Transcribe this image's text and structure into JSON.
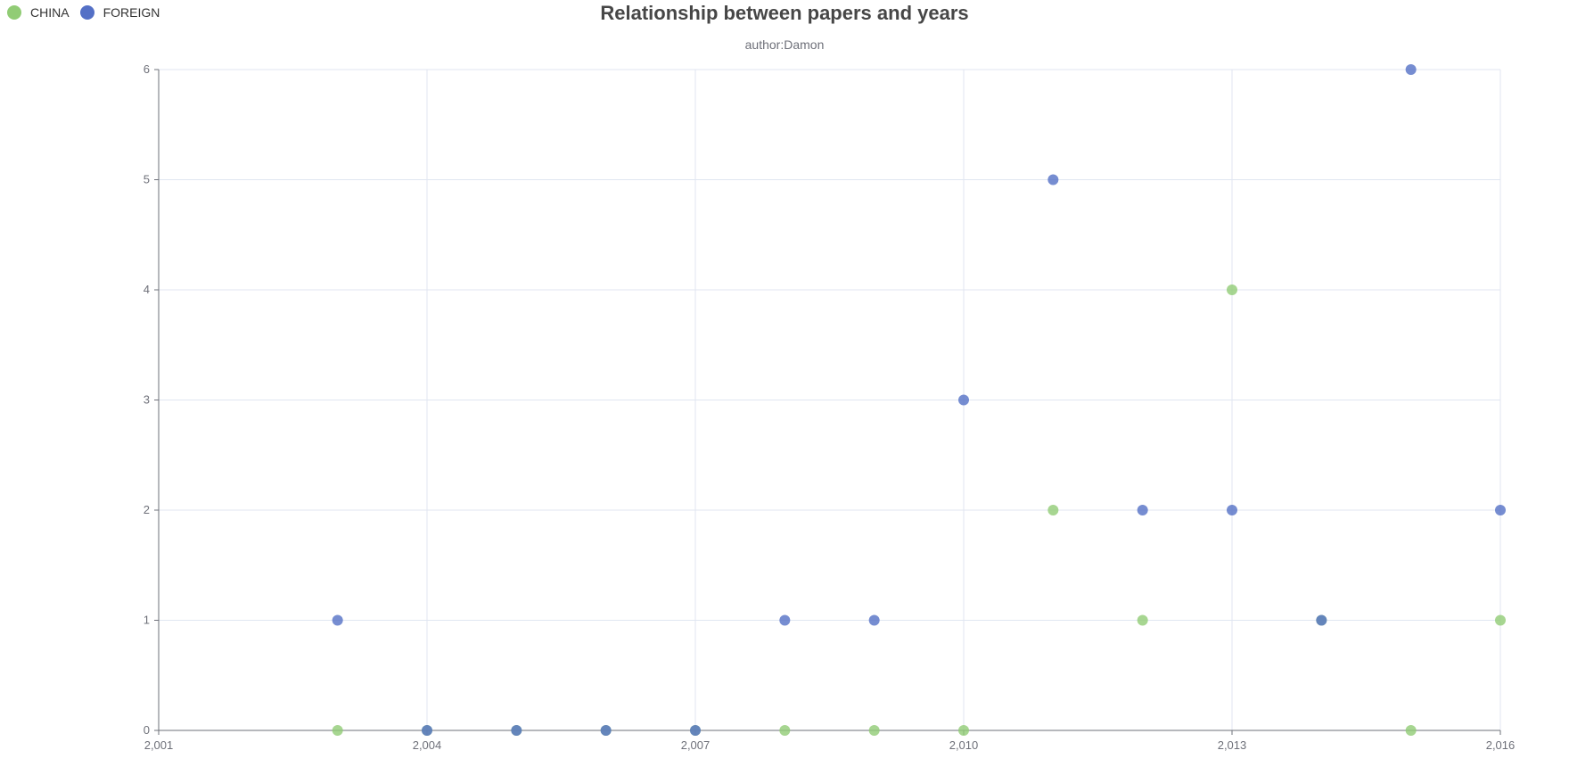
{
  "chart_data": {
    "type": "scatter",
    "title": "Relationship between papers and years",
    "subtitle": "author:Damon",
    "xlabel": "",
    "ylabel": "",
    "xlim": [
      2001,
      2016
    ],
    "ylim": [
      0,
      6
    ],
    "x_ticks": [
      "2,001",
      "2,004",
      "2,007",
      "2,010",
      "2,013",
      "2,016"
    ],
    "x_tick_values": [
      2001,
      2004,
      2007,
      2010,
      2013,
      2016
    ],
    "y_ticks": [
      "0",
      "1",
      "2",
      "3",
      "4",
      "5",
      "6"
    ],
    "y_tick_values": [
      0,
      1,
      2,
      3,
      4,
      5,
      6
    ],
    "grid": true,
    "legend_position": "top-left",
    "series": [
      {
        "name": "CHINA",
        "color": "#91cc75",
        "points": [
          [
            2003,
            0
          ],
          [
            2004,
            0
          ],
          [
            2005,
            0
          ],
          [
            2006,
            0
          ],
          [
            2007,
            0
          ],
          [
            2008,
            0
          ],
          [
            2009,
            0
          ],
          [
            2010,
            0
          ],
          [
            2011,
            2
          ],
          [
            2012,
            1
          ],
          [
            2013,
            4
          ],
          [
            2014,
            1
          ],
          [
            2015,
            0
          ],
          [
            2016,
            1
          ]
        ]
      },
      {
        "name": "FOREIGN",
        "color": "#5470c6",
        "points": [
          [
            2003,
            1
          ],
          [
            2004,
            0
          ],
          [
            2005,
            0
          ],
          [
            2006,
            0
          ],
          [
            2007,
            0
          ],
          [
            2008,
            1
          ],
          [
            2009,
            1
          ],
          [
            2010,
            3
          ],
          [
            2011,
            5
          ],
          [
            2012,
            2
          ],
          [
            2013,
            2
          ],
          [
            2014,
            1
          ],
          [
            2015,
            6
          ],
          [
            2016,
            2
          ]
        ]
      }
    ]
  }
}
